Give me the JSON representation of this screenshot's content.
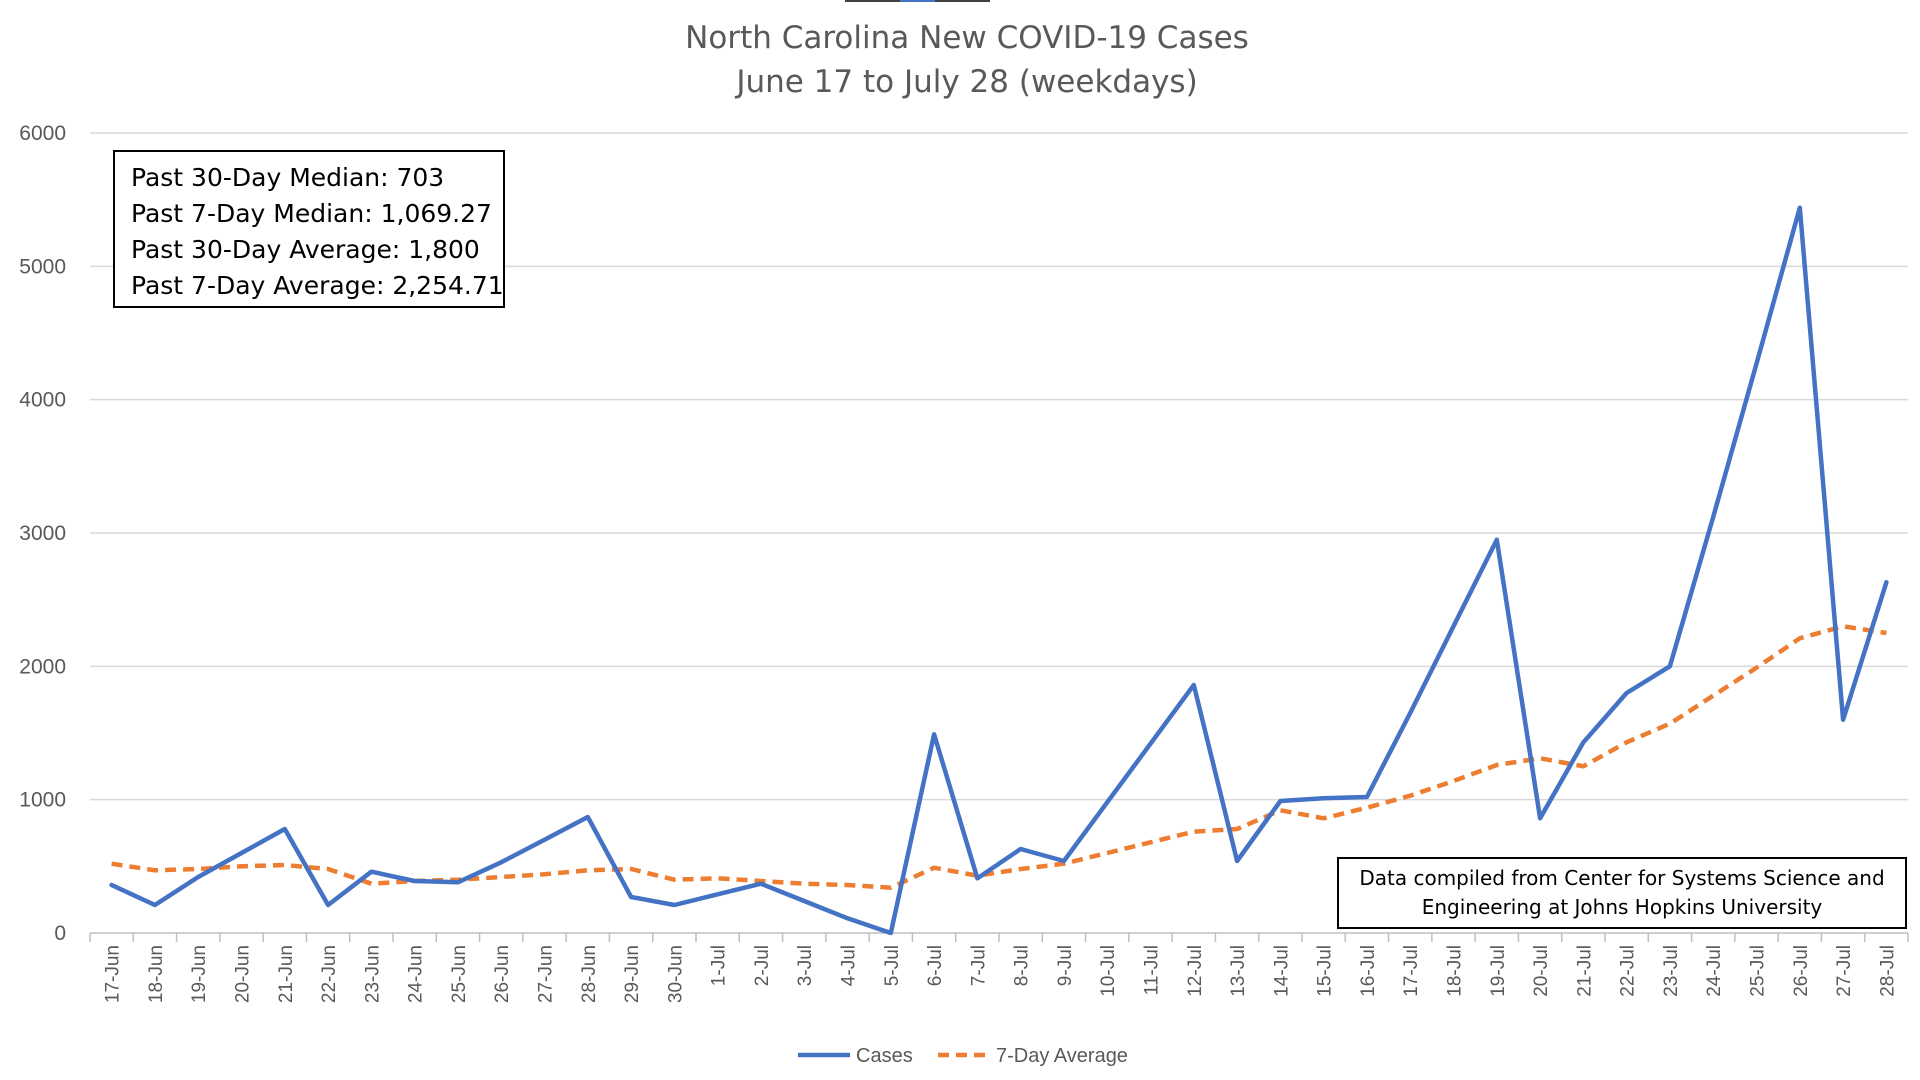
{
  "chart_data": {
    "type": "line",
    "title": "North Carolina New COVID-19 Cases",
    "subtitle": "June 17 to July 28 (weekdays)",
    "categories": [
      "17-Jun",
      "18-Jun",
      "19-Jun",
      "20-Jun",
      "21-Jun",
      "22-Jun",
      "23-Jun",
      "24-Jun",
      "25-Jun",
      "26-Jun",
      "27-Jun",
      "28-Jun",
      "29-Jun",
      "30-Jun",
      "1-Jul",
      "2-Jul",
      "3-Jul",
      "4-Jul",
      "5-Jul",
      "6-Jul",
      "7-Jul",
      "8-Jul",
      "9-Jul",
      "10-Jul",
      "11-Jul",
      "12-Jul",
      "13-Jul",
      "14-Jul",
      "15-Jul",
      "16-Jul",
      "17-Jul",
      "18-Jul",
      "19-Jul",
      "20-Jul",
      "21-Jul",
      "22-Jul",
      "23-Jul",
      "24-Jul",
      "25-Jul",
      "26-Jul",
      "27-Jul",
      "28-Jul"
    ],
    "series": [
      {
        "name": "Cases",
        "color": "#4472c4",
        "dash": "solid",
        "values": [
          360,
          210,
          420,
          600,
          780,
          210,
          460,
          390,
          380,
          530,
          700,
          870,
          270,
          210,
          290,
          370,
          240,
          110,
          0,
          1490,
          410,
          630,
          540,
          980,
          1420,
          1860,
          540,
          990,
          1010,
          1020,
          1650,
          2300,
          2950,
          860,
          1430,
          1800,
          2000,
          3120,
          4270,
          5440,
          1600,
          2630
        ]
      },
      {
        "name": "7-Day Average",
        "color": "#ed7d31",
        "dash": "dashed",
        "values": [
          520,
          470,
          480,
          500,
          510,
          480,
          370,
          390,
          400,
          420,
          440,
          470,
          480,
          400,
          410,
          390,
          370,
          360,
          340,
          490,
          430,
          480,
          520,
          600,
          680,
          760,
          780,
          920,
          860,
          940,
          1030,
          1140,
          1260,
          1310,
          1250,
          1430,
          1570,
          1780,
          1990,
          2210,
          2300,
          2250
        ]
      }
    ],
    "yticks": [
      0,
      1000,
      2000,
      3000,
      4000,
      5000,
      6000
    ],
    "ylim": [
      0,
      6000
    ],
    "grid": true,
    "legend_position": "bottom",
    "stats": [
      "Past 30-Day Median: 703",
      "Past 7-Day Median: 1,069.27",
      "Past 30-Day Average: 1,800",
      "Past 7-Day Average: 2,254.71"
    ],
    "source_note": [
      "Data compiled from Center for Systems Science and",
      "Engineering at Johns Hopkins University"
    ]
  }
}
